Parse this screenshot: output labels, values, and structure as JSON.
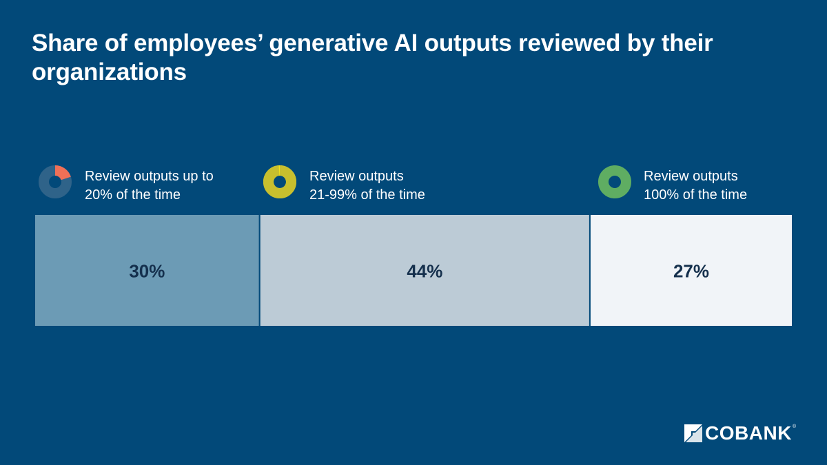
{
  "chart_data": {
    "type": "bar",
    "subtype": "100%-stacked-horizontal",
    "title": "Share of employees’ generative AI outputs reviewed by their organizations",
    "categories": [
      {
        "name": "Review outputs up to 20% of the time",
        "legend_lines": [
          "Review outputs up to",
          "20% of the time"
        ],
        "value": 30,
        "label": "30%",
        "fill": "#6c9bb5",
        "icon_color": "#f07057",
        "icon_fraction": 0.2
      },
      {
        "name": "Review outputs 21-99% of the time",
        "legend_lines": [
          "Review outputs",
          "21-99% of the time"
        ],
        "value": 44,
        "label": "44%",
        "fill": "#bccbd6",
        "icon_color": "#c8bf2e",
        "icon_fraction": 0.99
      },
      {
        "name": "Review outputs 100% of the time",
        "legend_lines": [
          "Review outputs",
          "100% of the time"
        ],
        "value": 27,
        "label": "27%",
        "fill": "#f1f4f8",
        "icon_color": "#5fad62",
        "icon_fraction": 1.0
      }
    ],
    "legend_placement": "top",
    "grid": false
  },
  "brand": {
    "logo_text": "COBANK",
    "background": "#024979",
    "label_color": "#15304d"
  }
}
